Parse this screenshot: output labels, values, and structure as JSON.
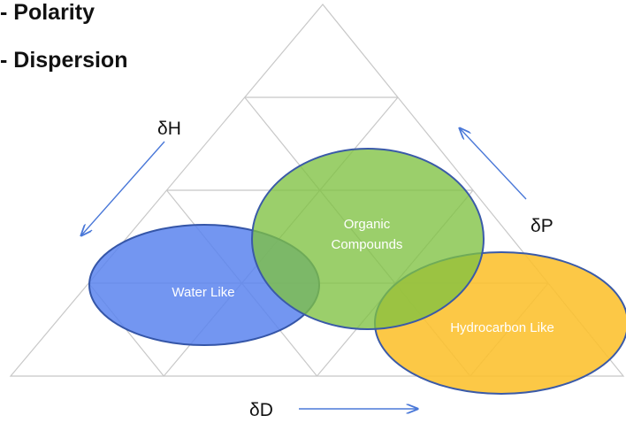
{
  "header": {
    "lines": [
      "- Polarity",
      "- Dispersion"
    ]
  },
  "axes": {
    "h": "δH",
    "p": "δP",
    "d": "δD"
  },
  "regions": {
    "organic": {
      "label": [
        "Organic",
        "Compounds"
      ]
    },
    "water": {
      "label": "Water Like"
    },
    "hydrocarbon": {
      "label": "Hydrocarbon Like"
    }
  }
}
